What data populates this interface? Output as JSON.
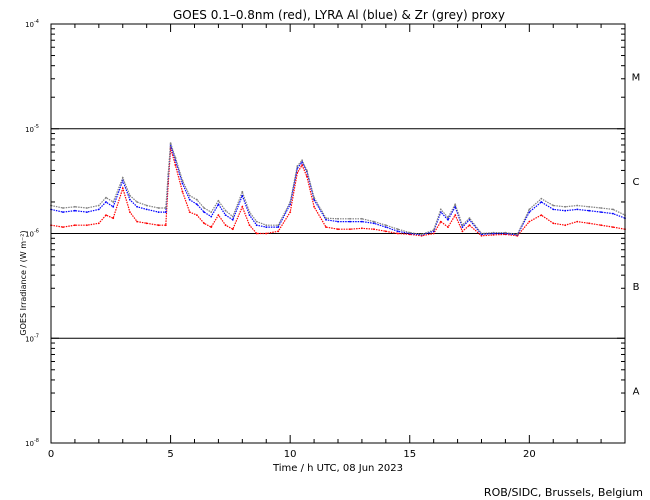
{
  "chart_data": {
    "type": "line",
    "title": "GOES 0.1–0.8nm (red), LYRA Al (blue) & Zr (grey) proxy",
    "xlabel": "Time / h UTC, 08 Jun 2023",
    "ylabel": "GOES Irradiance / (W m⁻²)",
    "y_scale": "log",
    "xlim": [
      0,
      24
    ],
    "ylim": [
      1e-08,
      0.0001
    ],
    "x_ticks": [
      0,
      5,
      10,
      15,
      20
    ],
    "x_tick_labels": [
      "0",
      "5",
      "10",
      "15",
      "20"
    ],
    "y_ticks": [
      {
        "mantissa": "10",
        "exponent": "-4",
        "value": 0.0001
      },
      {
        "mantissa": "10",
        "exponent": "-5",
        "value": 1e-05
      },
      {
        "mantissa": "10",
        "exponent": "-6",
        "value": 1e-06
      },
      {
        "mantissa": "10",
        "exponent": "-7",
        "value": 1e-07
      },
      {
        "mantissa": "10",
        "exponent": "-8",
        "value": 1e-08
      }
    ],
    "flare_classes": [
      {
        "label": "M",
        "value": 3.16e-05
      },
      {
        "label": "C",
        "value": 3.16e-06
      },
      {
        "label": "B",
        "value": 3.16e-07
      },
      {
        "label": "A",
        "value": 3.16e-08
      }
    ],
    "reference_lines": [
      1e-05,
      1e-06,
      1e-07
    ],
    "colors": {
      "red": "#ff0000",
      "blue": "#0000ff",
      "grey": "#808080"
    },
    "x": [
      0.0,
      0.5,
      1.0,
      1.5,
      2.0,
      2.3,
      2.6,
      3.0,
      3.3,
      3.6,
      4.0,
      4.5,
      4.8,
      4.9,
      5.0,
      5.2,
      5.5,
      5.8,
      6.1,
      6.4,
      6.7,
      7.0,
      7.3,
      7.6,
      8.0,
      8.3,
      8.6,
      9.0,
      9.5,
      10.0,
      10.3,
      10.5,
      10.7,
      11.0,
      11.5,
      12.0,
      12.5,
      13.0,
      13.5,
      14.0,
      14.5,
      15.0,
      15.5,
      16.0,
      16.3,
      16.6,
      16.9,
      17.2,
      17.5,
      18.0,
      18.5,
      19.0,
      19.5,
      20.0,
      20.5,
      21.0,
      21.5,
      22.0,
      22.5,
      23.0,
      23.5,
      24.0
    ],
    "series": [
      {
        "name": "GOES 0.1–0.8nm",
        "color": "#ff0000",
        "values": [
          1.2e-06,
          1.15e-06,
          1.2e-06,
          1.2e-06,
          1.25e-06,
          1.5e-06,
          1.4e-06,
          2.7e-06,
          1.6e-06,
          1.3e-06,
          1.25e-06,
          1.2e-06,
          1.2e-06,
          3e-06,
          6.5e-06,
          4.5e-06,
          2.5e-06,
          1.6e-06,
          1.5e-06,
          1.25e-06,
          1.15e-06,
          1.5e-06,
          1.2e-06,
          1.1e-06,
          1.8e-06,
          1.2e-06,
          1e-06,
          1e-06,
          1.05e-06,
          1.6e-06,
          3.8e-06,
          4.5e-06,
          3.5e-06,
          1.8e-06,
          1.15e-06,
          1.1e-06,
          1.1e-06,
          1.12e-06,
          1.1e-06,
          1.05e-06,
          1e-06,
          9.8e-07,
          9.5e-07,
          1e-06,
          1.3e-06,
          1.15e-06,
          1.5e-06,
          1.05e-06,
          1.2e-06,
          9.5e-07,
          9.7e-07,
          9.8e-07,
          9.5e-07,
          1.3e-06,
          1.5e-06,
          1.25e-06,
          1.2e-06,
          1.3e-06,
          1.25e-06,
          1.2e-06,
          1.15e-06,
          1.1e-06
        ]
      },
      {
        "name": "LYRA Al",
        "color": "#0000ff",
        "values": [
          1.7e-06,
          1.6e-06,
          1.65e-06,
          1.6e-06,
          1.7e-06,
          2e-06,
          1.8e-06,
          3.2e-06,
          2.1e-06,
          1.8e-06,
          1.7e-06,
          1.6e-06,
          1.6e-06,
          3.5e-06,
          7e-06,
          5e-06,
          3e-06,
          2.1e-06,
          1.9e-06,
          1.6e-06,
          1.45e-06,
          1.9e-06,
          1.5e-06,
          1.35e-06,
          2.3e-06,
          1.5e-06,
          1.2e-06,
          1.15e-06,
          1.15e-06,
          1.9e-06,
          4.2e-06,
          4.8e-06,
          3.9e-06,
          2.1e-06,
          1.35e-06,
          1.3e-06,
          1.3e-06,
          1.3e-06,
          1.25e-06,
          1.15e-06,
          1.05e-06,
          1e-06,
          9.7e-07,
          1.05e-06,
          1.6e-06,
          1.35e-06,
          1.8e-06,
          1.15e-06,
          1.35e-06,
          9.8e-07,
          1e-06,
          1e-06,
          9.7e-07,
          1.6e-06,
          2e-06,
          1.7e-06,
          1.65e-06,
          1.7e-06,
          1.65e-06,
          1.6e-06,
          1.55e-06,
          1.4e-06
        ]
      },
      {
        "name": "LYRA Zr",
        "color": "#808080",
        "values": [
          1.85e-06,
          1.75e-06,
          1.8e-06,
          1.75e-06,
          1.85e-06,
          2.2e-06,
          2e-06,
          3.4e-06,
          2.3e-06,
          2e-06,
          1.85e-06,
          1.75e-06,
          1.75e-06,
          3.7e-06,
          7.3e-06,
          5.3e-06,
          3.2e-06,
          2.3e-06,
          2.1e-06,
          1.75e-06,
          1.6e-06,
          2.05e-06,
          1.65e-06,
          1.45e-06,
          2.5e-06,
          1.6e-06,
          1.3e-06,
          1.2e-06,
          1.2e-06,
          2e-06,
          4.4e-06,
          5e-06,
          4e-06,
          2.2e-06,
          1.4e-06,
          1.38e-06,
          1.38e-06,
          1.38e-06,
          1.3e-06,
          1.2e-06,
          1.1e-06,
          1.02e-06,
          9.8e-07,
          1.08e-06,
          1.7e-06,
          1.42e-06,
          1.9e-06,
          1.2e-06,
          1.4e-06,
          1e-06,
          1.02e-06,
          1.02e-06,
          9.8e-07,
          1.7e-06,
          2.15e-06,
          1.85e-06,
          1.8e-06,
          1.85e-06,
          1.8e-06,
          1.75e-06,
          1.7e-06,
          1.5e-06
        ]
      }
    ]
  },
  "credit": "ROB/SIDC, Brussels, Belgium"
}
